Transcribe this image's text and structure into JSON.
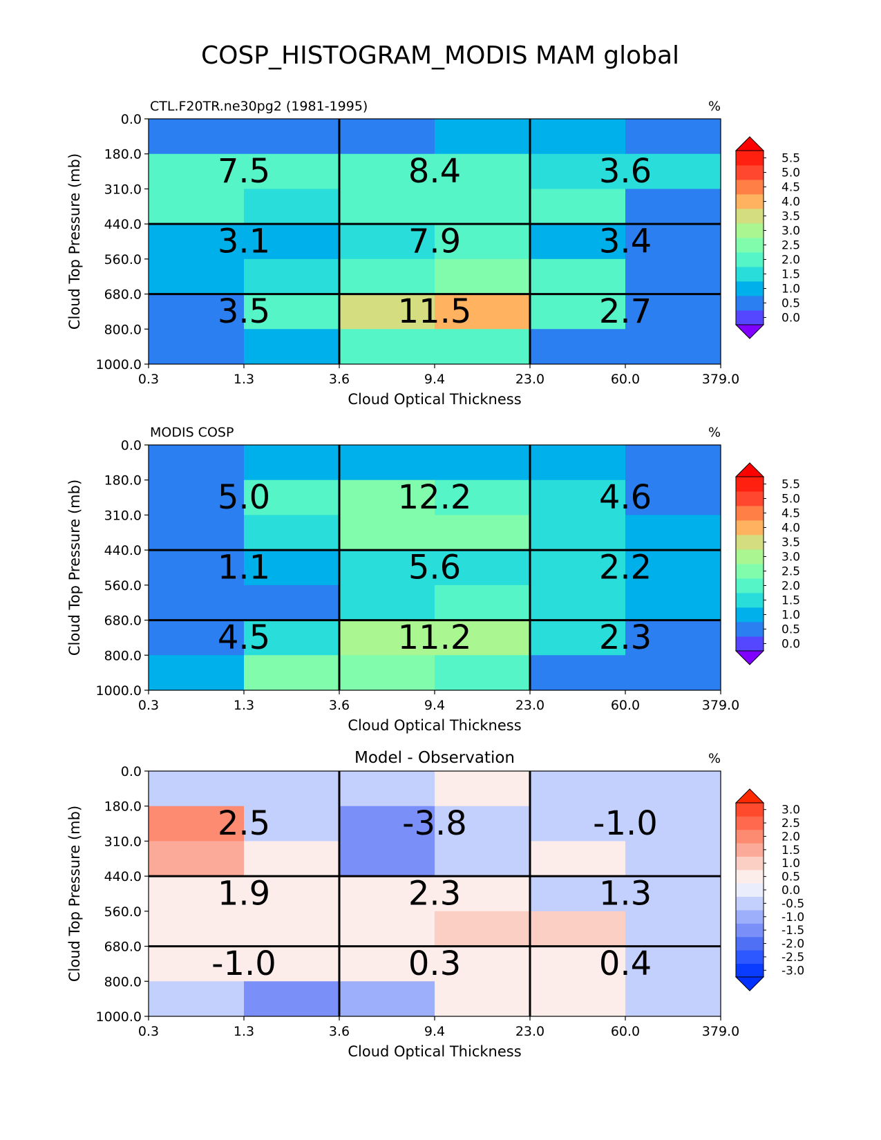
{
  "figure_title": "COSP_HISTOGRAM_MODIS MAM global",
  "chart_data": [
    {
      "type": "heatmap",
      "title_left": "CTL.F20TR.ne30pg2 (1981-1995)",
      "title_center": "",
      "units": "%",
      "xlabel": "Cloud Optical Thickness",
      "ylabel": "Cloud Top Pressure (mb)",
      "x_ticks": [
        "0.3",
        "1.3",
        "3.6",
        "9.4",
        "23.0",
        "60.0",
        "379.0"
      ],
      "y_ticks": [
        "0.0",
        "180.0",
        "310.0",
        "440.0",
        "560.0",
        "680.0",
        "800.0",
        "1000.0"
      ],
      "values": [
        [
          0.3,
          0.3,
          0.3,
          0.8,
          0.8,
          0.3
        ],
        [
          2.2,
          1.9,
          1.9,
          1.9,
          1.4,
          1.4
        ],
        [
          1.9,
          1.4,
          1.9,
          2.2,
          1.9,
          0.3
        ],
        [
          0.8,
          0.8,
          1.4,
          1.9,
          0.8,
          0.3
        ],
        [
          0.8,
          1.4,
          2.2,
          2.7,
          1.9,
          0.3
        ],
        [
          0.3,
          1.9,
          3.7,
          4.2,
          2.2,
          0.3
        ],
        [
          0.3,
          0.8,
          1.9,
          1.9,
          0.3,
          0.3
        ]
      ],
      "group_labels": [
        [
          "7.5",
          "8.4",
          "3.6"
        ],
        [
          "3.1",
          "7.9",
          "3.4"
        ],
        [
          "3.5",
          "11.5",
          "2.7"
        ]
      ],
      "colorbar": {
        "ticks": [
          "5.5",
          "5.0",
          "4.5",
          "4.0",
          "3.5",
          "3.0",
          "2.5",
          "2.0",
          "1.5",
          "1.0",
          "0.5",
          "0.0"
        ],
        "min": -0.25,
        "max": 5.75,
        "bin_colors": [
          "#5447FF",
          "#2B7FF0",
          "#00B0EB",
          "#29DDDA",
          "#55F5C8",
          "#81FCAD",
          "#AAF792",
          "#D4DD80",
          "#FFB360",
          "#FF7F47",
          "#FF4730",
          "#FF2010"
        ],
        "under_color": "#8000FF",
        "over_color": "#FF0000"
      }
    },
    {
      "type": "heatmap",
      "title_left": "MODIS COSP",
      "title_center": "",
      "units": "%",
      "xlabel": "Cloud Optical Thickness",
      "ylabel": "Cloud Top Pressure (mb)",
      "x_ticks": [
        "0.3",
        "1.3",
        "3.6",
        "9.4",
        "23.0",
        "60.0",
        "379.0"
      ],
      "y_ticks": [
        "0.0",
        "180.0",
        "310.0",
        "440.0",
        "560.0",
        "680.0",
        "800.0",
        "1000.0"
      ],
      "values": [
        [
          0.3,
          0.8,
          0.8,
          0.8,
          0.8,
          0.3
        ],
        [
          0.3,
          2.2,
          2.7,
          2.2,
          1.4,
          0.3
        ],
        [
          0.3,
          1.4,
          2.7,
          2.7,
          1.4,
          0.8
        ],
        [
          0.3,
          0.8,
          1.4,
          1.4,
          1.4,
          0.8
        ],
        [
          0.3,
          0.3,
          1.4,
          1.9,
          1.4,
          0.8
        ],
        [
          0.3,
          1.4,
          3.2,
          3.2,
          1.4,
          0.3
        ],
        [
          0.8,
          2.7,
          2.7,
          1.9,
          0.3,
          0.3
        ]
      ],
      "group_labels": [
        [
          "5.0",
          "12.2",
          "4.6"
        ],
        [
          "1.1",
          "5.6",
          "2.2"
        ],
        [
          "4.5",
          "11.2",
          "2.3"
        ]
      ],
      "colorbar": {
        "ticks": [
          "5.5",
          "5.0",
          "4.5",
          "4.0",
          "3.5",
          "3.0",
          "2.5",
          "2.0",
          "1.5",
          "1.0",
          "0.5",
          "0.0"
        ],
        "min": -0.25,
        "max": 5.75,
        "bin_colors": [
          "#5447FF",
          "#2B7FF0",
          "#00B0EB",
          "#29DDDA",
          "#55F5C8",
          "#81FCAD",
          "#AAF792",
          "#D4DD80",
          "#FFB360",
          "#FF7F47",
          "#FF4730",
          "#FF2010"
        ],
        "under_color": "#8000FF",
        "over_color": "#FF0000"
      }
    },
    {
      "type": "heatmap",
      "title_left": "",
      "title_center": "Model - Observation",
      "units": "%",
      "xlabel": "Cloud Optical Thickness",
      "ylabel": "Cloud Top Pressure (mb)",
      "x_ticks": [
        "0.3",
        "1.3",
        "3.6",
        "9.4",
        "23.0",
        "60.0",
        "379.0"
      ],
      "y_ticks": [
        "0.0",
        "180.0",
        "310.0",
        "440.0",
        "560.0",
        "680.0",
        "800.0",
        "1000.0"
      ],
      "values": [
        [
          -0.3,
          -0.6,
          -0.3,
          0.3,
          -0.3,
          -0.3
        ],
        [
          2.2,
          -0.3,
          -1.3,
          -0.3,
          -0.3,
          -0.3
        ],
        [
          1.4,
          0.3,
          -1.3,
          -0.6,
          0.3,
          -0.3
        ],
        [
          0.6,
          0.3,
          0.3,
          0.3,
          -0.3,
          -0.3
        ],
        [
          0.6,
          0.6,
          0.6,
          1.1,
          1.1,
          -0.3
        ],
        [
          0.3,
          0.6,
          0.3,
          0.6,
          0.6,
          -0.3
        ],
        [
          -0.3,
          -1.6,
          -1.1,
          0.3,
          0.3,
          -0.3
        ]
      ],
      "group_labels": [
        [
          "2.5",
          "-3.8",
          "-1.0"
        ],
        [
          "1.9",
          "2.3",
          "1.3"
        ],
        [
          "-1.0",
          "0.3",
          "0.4"
        ]
      ],
      "colorbar": {
        "ticks": [
          "3.0",
          "2.5",
          "2.0",
          "1.5",
          "1.0",
          "0.5",
          "0.0",
          "-0.5",
          "-1.0",
          "-1.5",
          "-2.0",
          "-2.5",
          "-3.0"
        ],
        "min": -3.25,
        "max": 3.25,
        "bin_colors": [
          "#0A3CFF",
          "#2E58FF",
          "#4F6FF5",
          "#7A90F8",
          "#9DAEFA",
          "#C3CFFC",
          "#E9EDFC",
          "#FDEDEA",
          "#FCCFC5",
          "#FBAA9A",
          "#FC8B72",
          "#FF6A4E",
          "#FF4A2E"
        ],
        "under_color": "#0030FF",
        "over_color": "#FF2A00"
      }
    }
  ]
}
